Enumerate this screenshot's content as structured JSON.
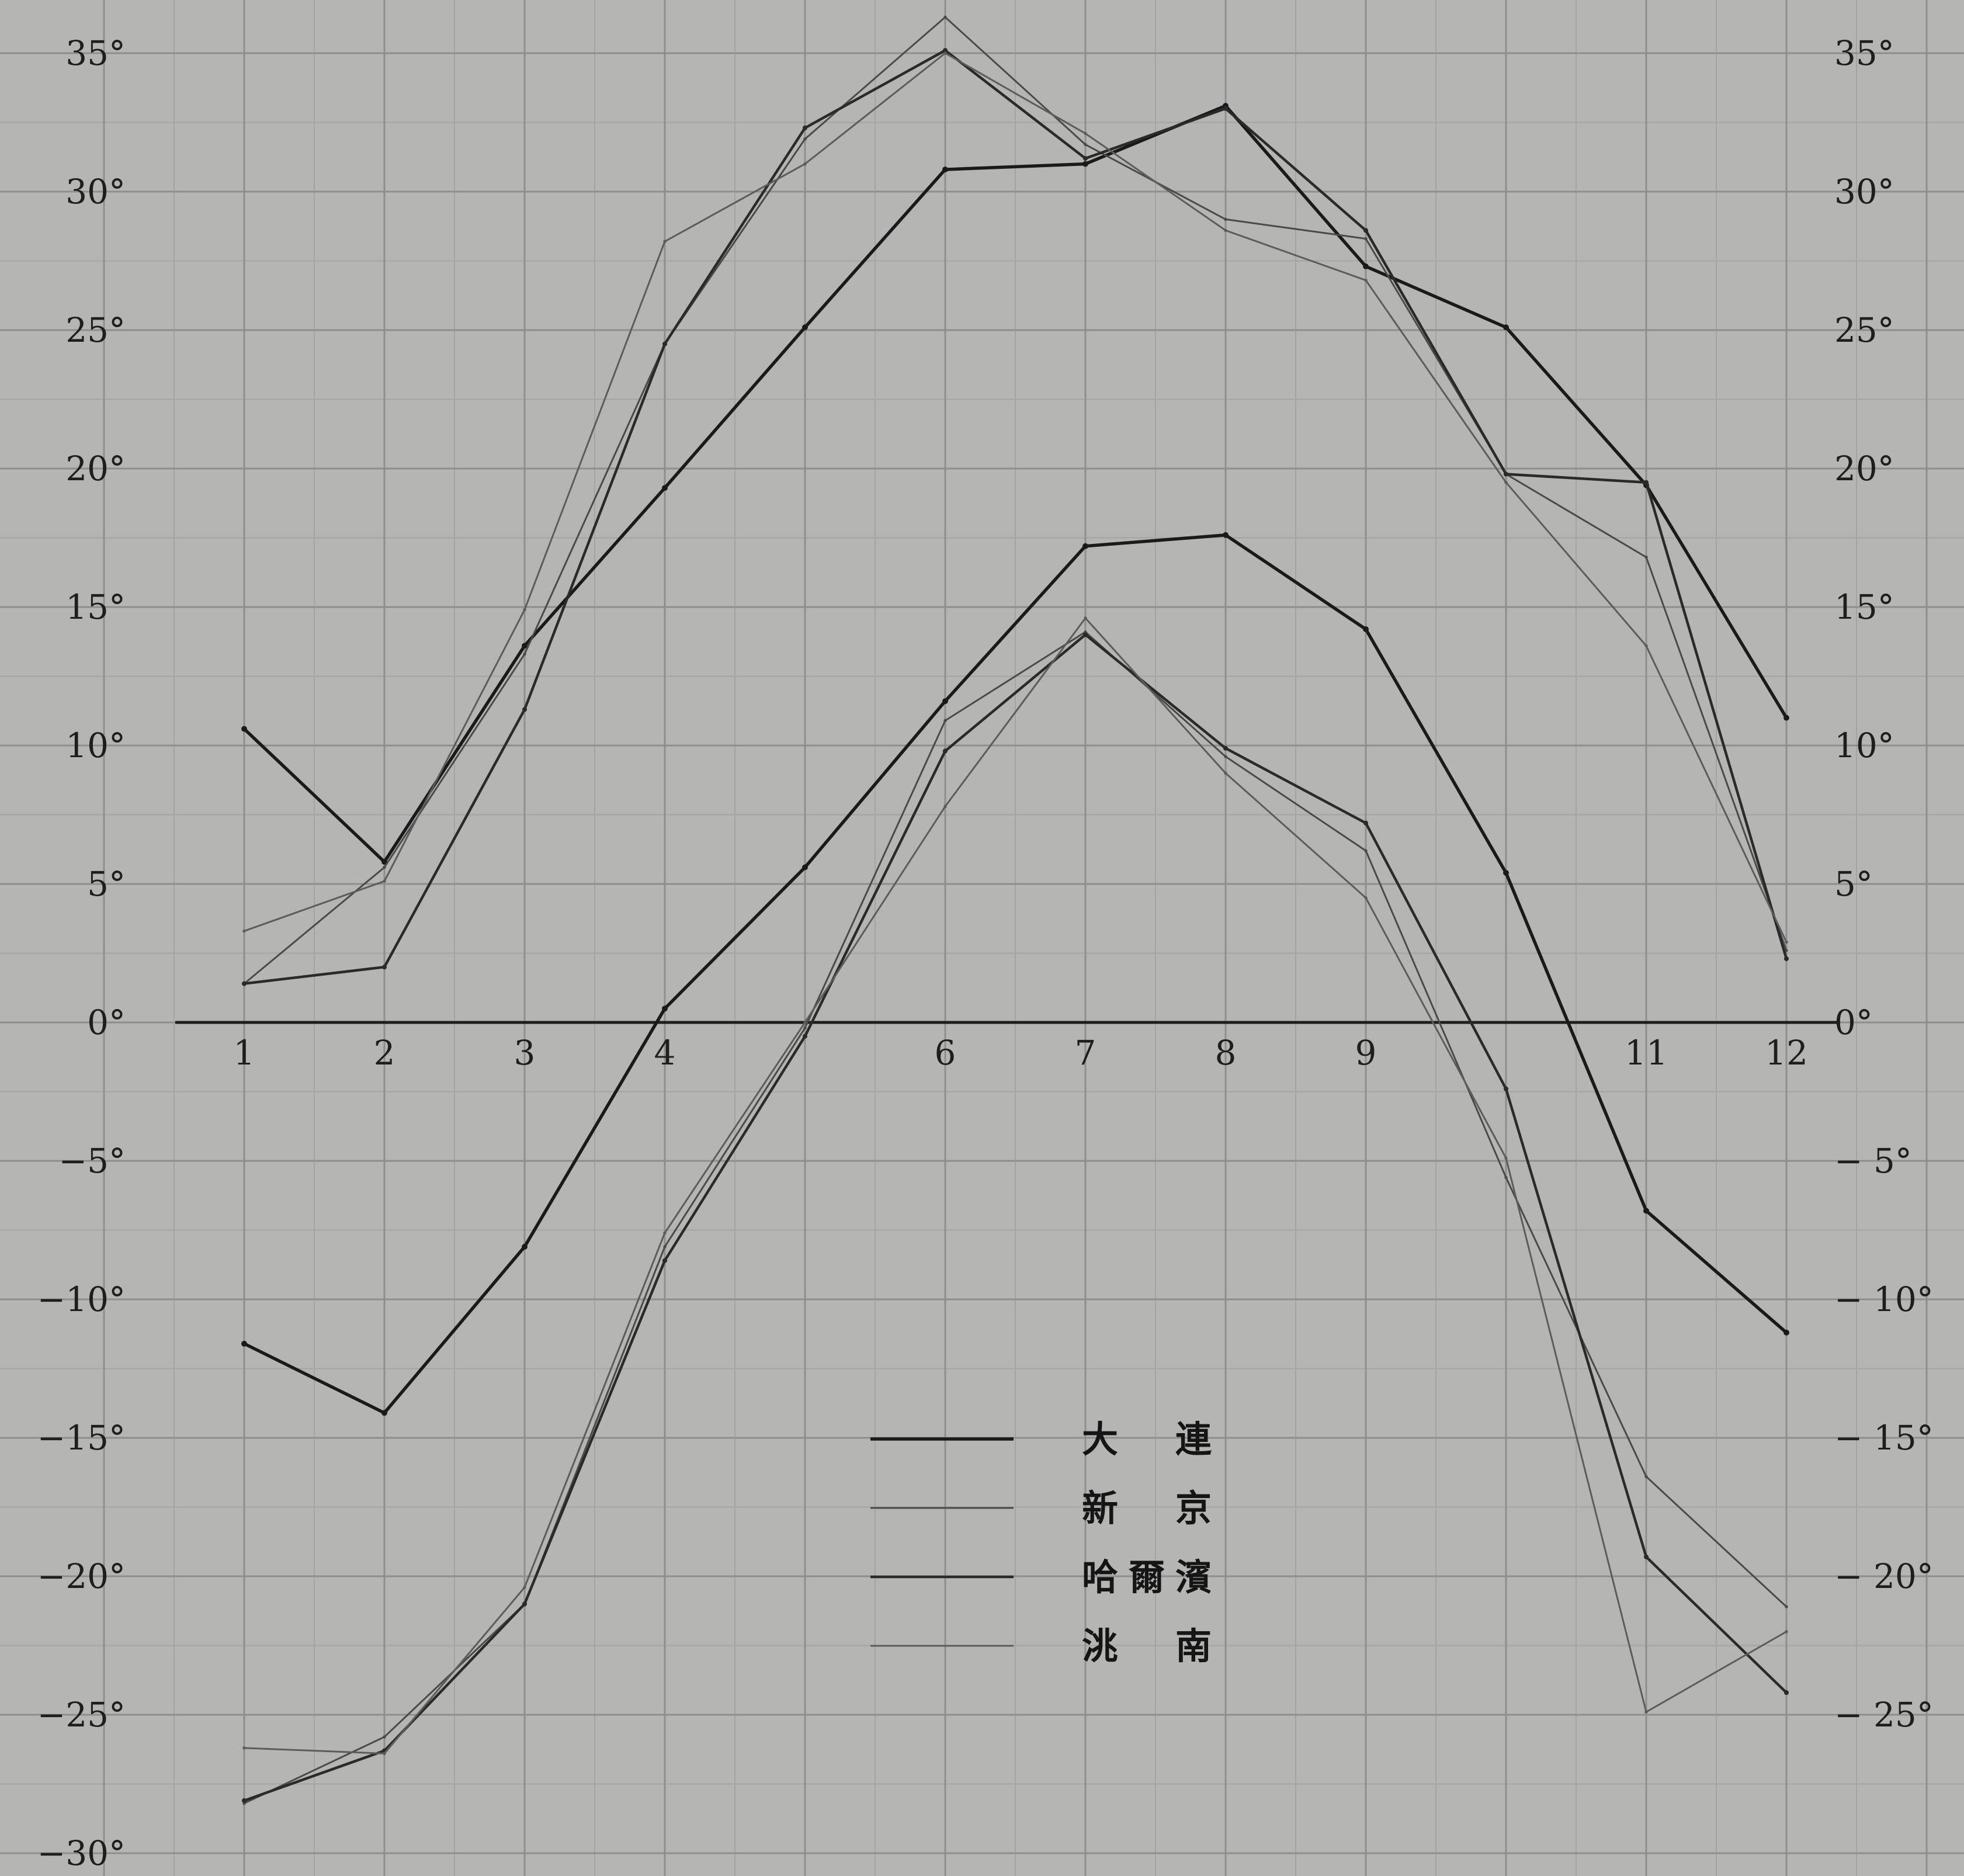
{
  "chart_data": {
    "type": "line",
    "title": "",
    "xlabel": "",
    "ylabel": "",
    "x": [
      1,
      2,
      3,
      4,
      5,
      6,
      7,
      8,
      9,
      10,
      11,
      12
    ],
    "x_tick_labels": [
      "1",
      "2",
      "3",
      "4",
      "6",
      "7",
      "8",
      "9",
      "11",
      "12"
    ],
    "x_tick_values": [
      1,
      2,
      3,
      4,
      6,
      7,
      8,
      9,
      11,
      12
    ],
    "ylim": [
      -30,
      36
    ],
    "y_ticks_left": [
      {
        "value": 35,
        "label": "35°"
      },
      {
        "value": 30,
        "label": "30°"
      },
      {
        "value": 25,
        "label": "25°"
      },
      {
        "value": 20,
        "label": "20°"
      },
      {
        "value": 15,
        "label": "15°"
      },
      {
        "value": 10,
        "label": "10°"
      },
      {
        "value": 5,
        "label": "5°"
      },
      {
        "value": 0,
        "label": "0°"
      },
      {
        "value": -5,
        "label": "−5°"
      },
      {
        "value": -10,
        "label": "−10°"
      },
      {
        "value": -15,
        "label": "−15°"
      },
      {
        "value": -20,
        "label": "−20°"
      },
      {
        "value": -25,
        "label": "−25°"
      },
      {
        "value": -30,
        "label": "−30°"
      }
    ],
    "y_ticks_right": [
      {
        "value": 35,
        "label": "35°"
      },
      {
        "value": 30,
        "label": "30°"
      },
      {
        "value": 25,
        "label": "25°"
      },
      {
        "value": 20,
        "label": "20°"
      },
      {
        "value": 15,
        "label": "15°"
      },
      {
        "value": 10,
        "label": "10°"
      },
      {
        "value": 5,
        "label": "5°"
      },
      {
        "value": 0,
        "label": "0°"
      },
      {
        "value": -5,
        "label": "− 5°"
      },
      {
        "value": -10,
        "label": "− 10°"
      },
      {
        "value": -15,
        "label": "− 15°"
      },
      {
        "value": -20,
        "label": "− 20°"
      },
      {
        "value": -25,
        "label": "− 25°"
      }
    ],
    "grid": true,
    "legend_position": "center-bottom",
    "series": [
      {
        "name": "大　連",
        "color": "#1a1a1a",
        "weight": "heavy",
        "group": "max",
        "values": [
          10.6,
          5.8,
          13.6,
          19.3,
          25.1,
          30.8,
          31.0,
          33.1,
          27.3,
          25.1,
          19.4,
          11.0
        ]
      },
      {
        "name": "新　京",
        "color": "#4a4a4a",
        "weight": "light",
        "group": "max",
        "values": [
          1.4,
          5.6,
          13.3,
          24.5,
          31.9,
          36.3,
          31.7,
          29.0,
          28.3,
          19.8,
          16.8,
          2.6
        ]
      },
      {
        "name": "哈爾濱",
        "color": "#2a2a2a",
        "weight": "medium",
        "group": "max",
        "values": [
          1.4,
          2.0,
          11.3,
          24.5,
          32.3,
          35.1,
          31.2,
          33.0,
          28.6,
          19.8,
          19.5,
          2.3
        ]
      },
      {
        "name": "洮　南",
        "color": "#5c5c5c",
        "weight": "light",
        "group": "max",
        "values": [
          3.3,
          5.1,
          14.9,
          28.2,
          31.0,
          35.0,
          32.1,
          28.6,
          26.8,
          19.5,
          13.6,
          2.9
        ]
      },
      {
        "name": "大　連",
        "color": "#1a1a1a",
        "weight": "heavy",
        "group": "min",
        "values": [
          -11.6,
          -14.1,
          -8.1,
          0.5,
          5.6,
          11.6,
          17.2,
          17.6,
          14.2,
          5.4,
          -6.8,
          -11.2
        ]
      },
      {
        "name": "新　京",
        "color": "#4a4a4a",
        "weight": "light",
        "group": "min",
        "values": [
          -28.2,
          -25.8,
          -21.0,
          -8.1,
          -0.2,
          10.9,
          14.1,
          9.6,
          6.2,
          -5.6,
          -16.4,
          -21.1
        ]
      },
      {
        "name": "哈爾濱",
        "color": "#2a2a2a",
        "weight": "medium",
        "group": "min",
        "values": [
          -28.1,
          -26.3,
          -21.0,
          -8.6,
          -0.5,
          9.8,
          14.0,
          9.9,
          7.2,
          -2.4,
          -19.3,
          -24.2
        ]
      },
      {
        "name": "洮　南",
        "color": "#5c5c5c",
        "weight": "light",
        "group": "min",
        "values": [
          -26.2,
          -26.4,
          -20.4,
          -7.6,
          0.0,
          7.8,
          14.6,
          9.0,
          4.5,
          -4.9,
          -24.9,
          -22.0
        ]
      }
    ],
    "legend": [
      {
        "label": "大　連",
        "color": "#1a1a1a",
        "weight": "heavy"
      },
      {
        "label": "新　京",
        "color": "#4a4a4a",
        "weight": "light"
      },
      {
        "label": "哈爾濱",
        "color": "#2a2a2a",
        "weight": "medium"
      },
      {
        "label": "洮　南",
        "color": "#5c5c5c",
        "weight": "light"
      }
    ]
  }
}
